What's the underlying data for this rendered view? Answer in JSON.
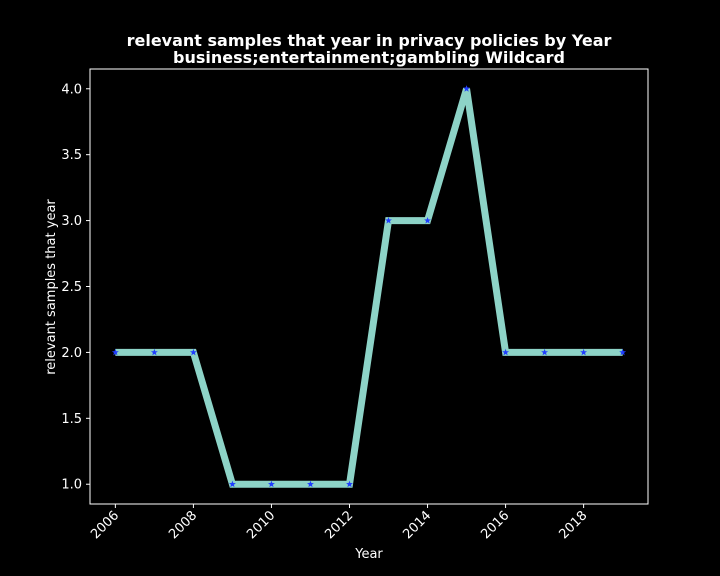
{
  "chart_data": {
    "type": "line",
    "title_line1": "relevant samples that year in privacy policies by Year",
    "title_line2": "business;entertainment;gambling Wildcard",
    "xlabel": "Year",
    "ylabel": "relevant samples that year",
    "x": [
      2006,
      2007,
      2008,
      2009,
      2010,
      2011,
      2012,
      2013,
      2014,
      2015,
      2016,
      2017,
      2018,
      2019
    ],
    "series": [
      {
        "values": [
          2,
          2,
          2,
          1,
          1,
          1,
          1,
          3,
          3,
          4,
          2,
          2,
          2,
          2
        ]
      }
    ],
    "xticks": [
      2006,
      2008,
      2010,
      2012,
      2014,
      2016,
      2018
    ],
    "yticks": [
      "1.0",
      "1.5",
      "2.0",
      "2.5",
      "3.0",
      "3.5",
      "4.0"
    ],
    "xlim": [
      2005.35,
      2019.65
    ],
    "ylim": [
      0.85,
      4.15
    ],
    "grid": false,
    "colors": {
      "background": "#000000",
      "line": "#8dd3c7",
      "marker": "#1f3dff",
      "text": "#ffffff",
      "axes": "#ffffff"
    }
  }
}
